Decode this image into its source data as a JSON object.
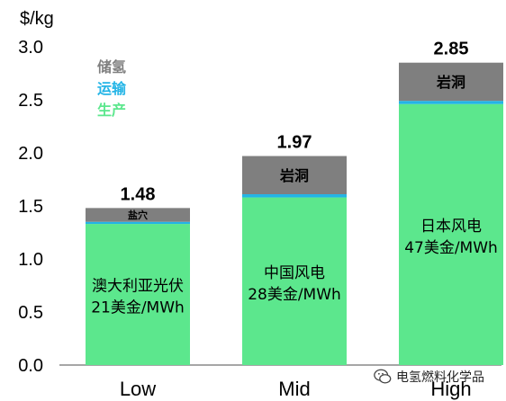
{
  "chart_data": {
    "type": "bar",
    "stacked": true,
    "ylabel": "$/kg",
    "ylim": [
      0,
      3.0
    ],
    "yticks": [
      "0.0",
      "0.5",
      "1.0",
      "1.5",
      "2.0",
      "2.5",
      "3.0"
    ],
    "grid": false,
    "legend_position": "top-left",
    "categories": [
      "Low",
      "Mid",
      "High"
    ],
    "series": [
      {
        "name": "生产",
        "color": "#5ce78d",
        "values": [
          1.33,
          1.58,
          2.46
        ]
      },
      {
        "name": "运输",
        "color": "#23b4e6",
        "values": [
          0.02,
          0.03,
          0.03
        ]
      },
      {
        "name": "储氢",
        "color": "#7f7f7f",
        "values": [
          0.13,
          0.36,
          0.36
        ]
      }
    ],
    "totals": [
      "1.48",
      "1.97",
      "2.85"
    ],
    "production_labels": [
      [
        "澳大利亚光伏",
        "21美金/MWh"
      ],
      [
        "中国风电",
        "28美金/MWh"
      ],
      [
        "日本风电",
        "47美金/MWh"
      ]
    ],
    "storage_labels": [
      "盐穴",
      "岩洞",
      "岩洞"
    ]
  },
  "watermark": {
    "text": "电氢燃料化学品",
    "icon": "wechat-icon"
  }
}
